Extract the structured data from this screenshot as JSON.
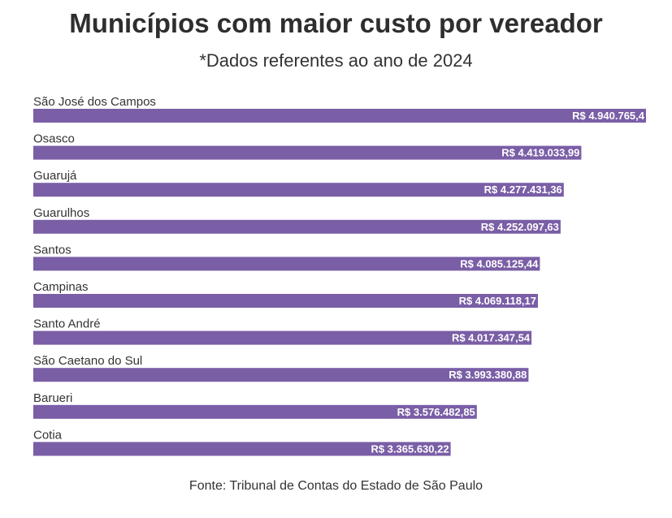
{
  "chart_data": {
    "type": "bar",
    "orientation": "horizontal",
    "title": "Municípios com maior custo por vereador",
    "subtitle": "*Dados referentes ao ano de 2024",
    "source": "Fonte: Tribunal de Contas do Estado de São Paulo",
    "categories": [
      "São José dos Campos",
      "Osasco",
      "Guarujá",
      "Guarulhos",
      "Santos",
      "Campinas",
      "Santo André",
      "São Caetano do Sul",
      "Barueri",
      "Cotia"
    ],
    "values": [
      4940765.4,
      4419033.99,
      4277431.36,
      4252097.63,
      4085125.44,
      4069118.17,
      4017347.54,
      3993380.88,
      3576482.85,
      3365630.22
    ],
    "value_labels": [
      "R$ 4.940.765,4",
      "R$ 4.419.033,99",
      "R$ 4.277.431,36",
      "R$ 4.252.097,63",
      "R$ 4.085.125,44",
      "R$ 4.069.118,17",
      "R$ 4.017.347,54",
      "R$ 3.993.380,88",
      "R$ 3.576.482,85",
      "R$ 3.365.630,22"
    ],
    "xlim": [
      0,
      4940765.4
    ],
    "bar_color": "#7a5ea6",
    "grid": false,
    "legend": "none"
  }
}
